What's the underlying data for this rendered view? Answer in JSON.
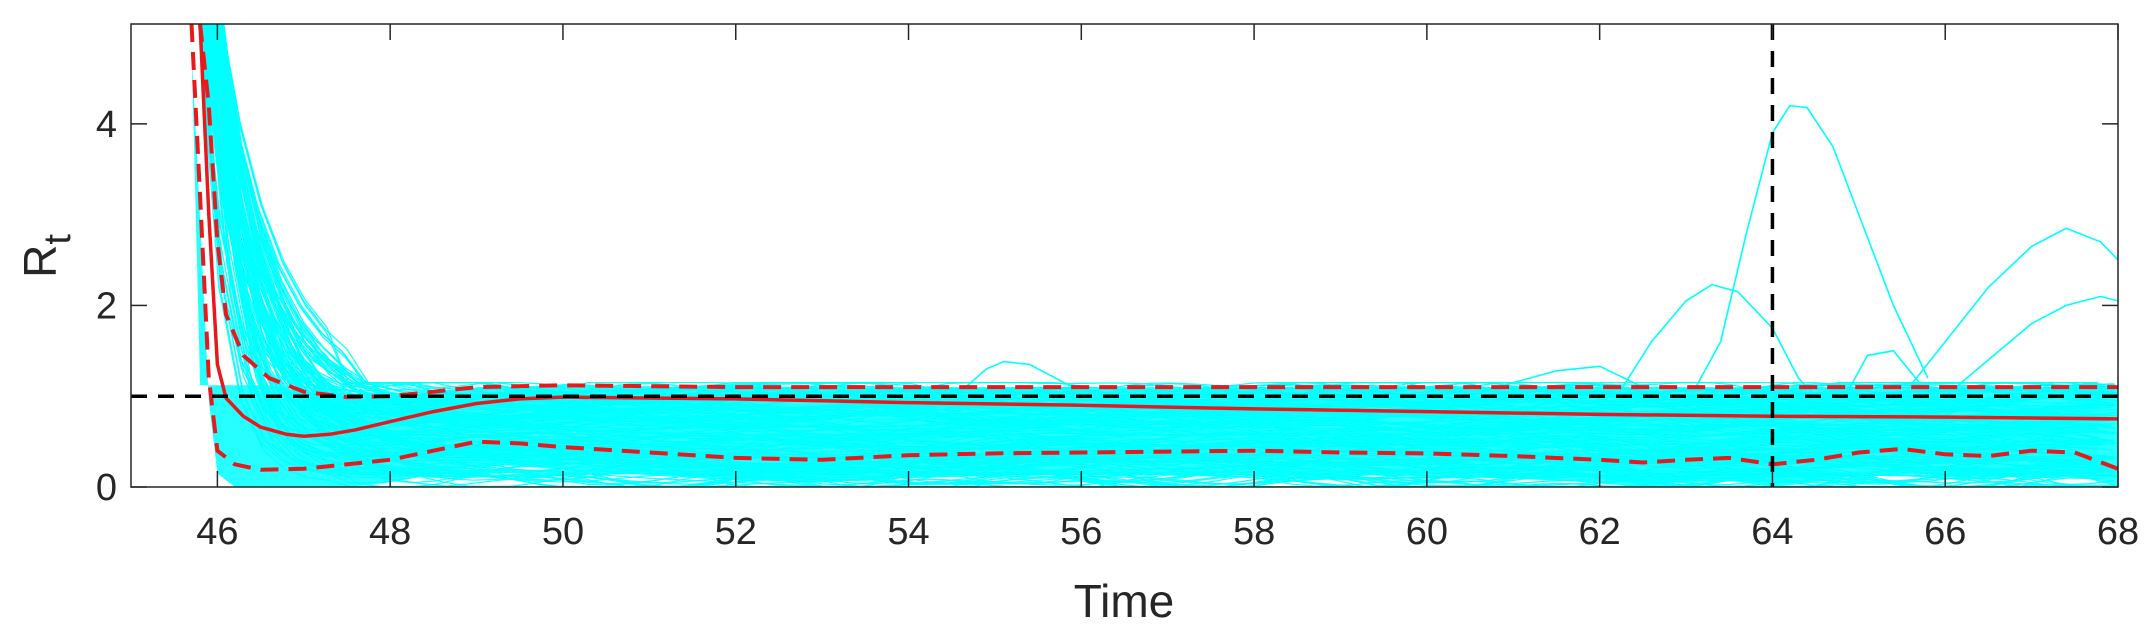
{
  "chart_data": {
    "type": "line",
    "title": "",
    "xlabel": "Time",
    "ylabel": {
      "main": "R",
      "sub": "t"
    },
    "xlim": [
      45,
      68
    ],
    "ylim": [
      0,
      5.1
    ],
    "xticks": [
      46,
      48,
      50,
      52,
      54,
      56,
      58,
      60,
      62,
      64,
      66,
      68
    ],
    "yticks": [
      0,
      2,
      4
    ],
    "grid": false,
    "legend": "none",
    "colors": {
      "ensemble": "#00ffff",
      "median": "#e8191c",
      "bounds": "#e8191c",
      "reference": "#000000",
      "axes": "#262626"
    },
    "reference_lines": [
      {
        "orientation": "horizontal",
        "value": 1,
        "style": "dashed"
      },
      {
        "orientation": "vertical",
        "value": 64,
        "style": "dashed"
      }
    ],
    "median": {
      "x": [
        45.8,
        45.9,
        46.0,
        46.1,
        46.3,
        46.5,
        46.8,
        47.0,
        47.3,
        47.6,
        48.0,
        48.5,
        49.0,
        49.5,
        50.0,
        51.0,
        52.0,
        53.0,
        54.0,
        56.0,
        58.0,
        60.0,
        62.0,
        64.0,
        66.0,
        68.0
      ],
      "y": [
        5.1,
        3.0,
        1.35,
        0.98,
        0.78,
        0.66,
        0.58,
        0.56,
        0.58,
        0.63,
        0.72,
        0.83,
        0.92,
        0.97,
        0.99,
        0.98,
        0.97,
        0.95,
        0.93,
        0.9,
        0.86,
        0.83,
        0.8,
        0.78,
        0.77,
        0.75
      ]
    },
    "upper_bound": {
      "x": [
        45.8,
        45.9,
        46.0,
        46.1,
        46.3,
        46.6,
        47.0,
        47.5,
        48.0,
        48.5,
        49.0,
        50.0,
        52.0,
        54.0,
        56.0,
        58.0,
        60.0,
        62.0,
        64.0,
        66.0,
        68.0
      ],
      "y": [
        5.1,
        4.2,
        2.7,
        1.9,
        1.45,
        1.2,
        1.05,
        0.99,
        1.0,
        1.05,
        1.1,
        1.12,
        1.1,
        1.1,
        1.1,
        1.1,
        1.1,
        1.1,
        1.1,
        1.1,
        1.1
      ]
    },
    "lower_bound": {
      "x": [
        45.7,
        45.8,
        45.9,
        46.0,
        46.2,
        46.5,
        47.0,
        47.5,
        48.0,
        48.5,
        49.0,
        49.5,
        50.0,
        51.0,
        52.0,
        53.0,
        54.0,
        55.0,
        56.0,
        57.0,
        58.0,
        59.0,
        60.0,
        61.0,
        62.0,
        62.5,
        63.0,
        63.5,
        64.0,
        64.5,
        65.0,
        65.5,
        66.0,
        66.5,
        67.0,
        67.5,
        68.0
      ],
      "y": [
        5.1,
        3.2,
        1.2,
        0.4,
        0.25,
        0.19,
        0.2,
        0.25,
        0.3,
        0.4,
        0.5,
        0.48,
        0.44,
        0.38,
        0.32,
        0.3,
        0.35,
        0.37,
        0.38,
        0.39,
        0.4,
        0.38,
        0.37,
        0.34,
        0.3,
        0.27,
        0.3,
        0.32,
        0.25,
        0.3,
        0.38,
        0.42,
        0.36,
        0.34,
        0.4,
        0.38,
        0.2
      ]
    },
    "highlighted_traces": [
      {
        "x": [
          54.6,
          54.9,
          55.1,
          55.4,
          55.7,
          56.0
        ],
        "y": [
          1.05,
          1.3,
          1.38,
          1.35,
          1.2,
          1.05
        ]
      },
      {
        "x": [
          62.2,
          62.6,
          63.0,
          63.3,
          63.6,
          64.0,
          64.3,
          64.6
        ],
        "y": [
          1.0,
          1.6,
          2.05,
          2.23,
          2.15,
          1.75,
          1.2,
          0.9
        ]
      },
      {
        "x": [
          63.0,
          63.4,
          63.7,
          64.0,
          64.2,
          64.4,
          64.7,
          65.0,
          65.4,
          65.8
        ],
        "y": [
          0.9,
          1.6,
          2.8,
          3.9,
          4.2,
          4.18,
          3.75,
          3.0,
          2.0,
          1.2
        ]
      },
      {
        "x": [
          64.9,
          65.1,
          65.4,
          65.7
        ],
        "y": [
          1.1,
          1.45,
          1.5,
          1.15
        ]
      },
      {
        "x": [
          65.5,
          66.0,
          66.5,
          67.0,
          67.4,
          67.8,
          68.0
        ],
        "y": [
          1.0,
          1.6,
          2.2,
          2.65,
          2.85,
          2.7,
          2.5
        ]
      },
      {
        "x": [
          66.0,
          66.5,
          67.0,
          67.4,
          67.8,
          68.0
        ],
        "y": [
          1.0,
          1.4,
          1.8,
          2.0,
          2.1,
          2.05
        ]
      },
      {
        "x": [
          60.5,
          61.0,
          61.5,
          62.0,
          62.5
        ],
        "y": [
          1.0,
          1.15,
          1.28,
          1.33,
          1.1
        ]
      }
    ]
  }
}
